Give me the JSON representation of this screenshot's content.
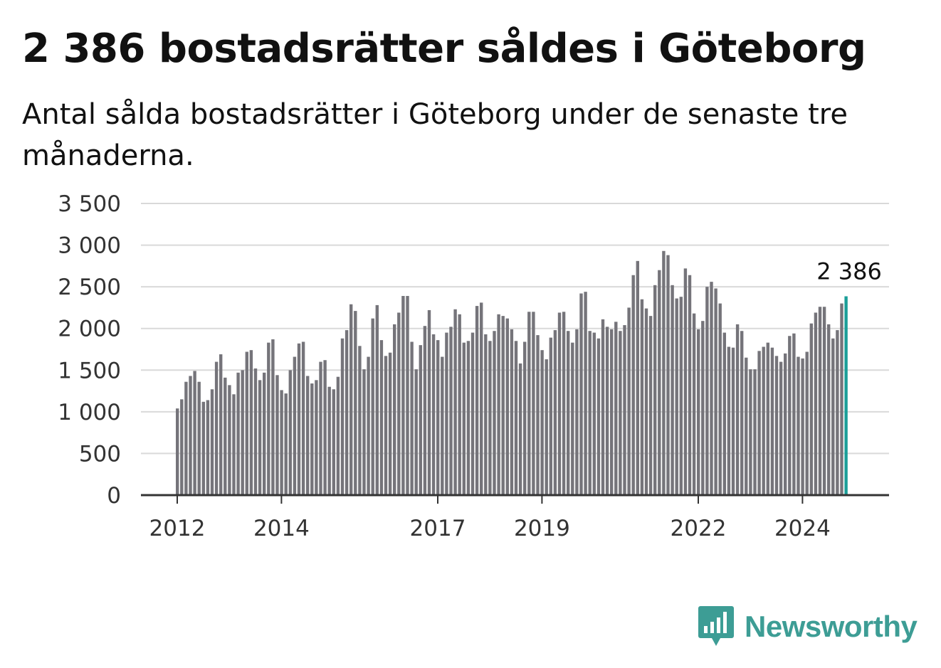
{
  "header": {
    "title": "2 386 bostadsrätter såldes i Göteborg",
    "subtitle": "Antal sålda bostadsrätter i Göteborg under de senaste tre månaderna."
  },
  "brand": {
    "name": "Newsworthy",
    "color": "#3d9d95",
    "icon": "bar-chart-logo-icon"
  },
  "chart_data": {
    "type": "bar",
    "bar_color": "#75747a",
    "highlight_color": "#1a9e98",
    "grid": true,
    "ylim": [
      0,
      3500
    ],
    "yticks": [
      {
        "value": 0,
        "label": "0"
      },
      {
        "value": 500,
        "label": "500"
      },
      {
        "value": 1000,
        "label": "1 000"
      },
      {
        "value": 1500,
        "label": "1 500"
      },
      {
        "value": 2000,
        "label": "2 000"
      },
      {
        "value": 2500,
        "label": "2 500"
      },
      {
        "value": 3000,
        "label": "3 000"
      },
      {
        "value": 3500,
        "label": "3 500"
      }
    ],
    "xticks": [
      {
        "date": "2012-01",
        "label": "2012"
      },
      {
        "date": "2014-01",
        "label": "2014"
      },
      {
        "date": "2017-01",
        "label": "2017"
      },
      {
        "date": "2019-01",
        "label": "2019"
      },
      {
        "date": "2022-01",
        "label": "2022"
      },
      {
        "date": "2024-01",
        "label": "2024"
      }
    ],
    "start_date": "2012-01",
    "values": [
      1040,
      1150,
      1360,
      1430,
      1490,
      1360,
      1120,
      1140,
      1270,
      1600,
      1690,
      1410,
      1320,
      1210,
      1470,
      1500,
      1720,
      1740,
      1520,
      1380,
      1470,
      1830,
      1870,
      1440,
      1260,
      1220,
      1500,
      1660,
      1820,
      1840,
      1430,
      1340,
      1380,
      1600,
      1620,
      1300,
      1270,
      1420,
      1880,
      1980,
      2290,
      2210,
      1790,
      1510,
      1660,
      2120,
      2280,
      1860,
      1670,
      1710,
      2050,
      2190,
      2390,
      2390,
      1840,
      1510,
      1800,
      2030,
      2220,
      1930,
      1860,
      1660,
      1950,
      2020,
      2230,
      2170,
      1830,
      1850,
      1950,
      2270,
      2310,
      1930,
      1850,
      1970,
      2170,
      2150,
      2120,
      1990,
      1850,
      1580,
      1840,
      2200,
      2200,
      1920,
      1740,
      1630,
      1890,
      1980,
      2190,
      2200,
      1970,
      1830,
      1990,
      2420,
      2440,
      1970,
      1950,
      1880,
      2110,
      2020,
      1990,
      2080,
      1970,
      2040,
      2250,
      2640,
      2810,
      2350,
      2240,
      2150,
      2520,
      2700,
      2930,
      2880,
      2520,
      2360,
      2380,
      2720,
      2640,
      2180,
      1990,
      2090,
      2500,
      2560,
      2480,
      2300,
      1950,
      1780,
      1770,
      2050,
      1970,
      1650,
      1510,
      1510,
      1730,
      1780,
      1830,
      1770,
      1670,
      1600,
      1700,
      1910,
      1940,
      1660,
      1640,
      1720,
      2060,
      2190,
      2260,
      2260,
      2050,
      1880,
      1980,
      2300,
      2386
    ],
    "highlight_label": "2 386"
  }
}
